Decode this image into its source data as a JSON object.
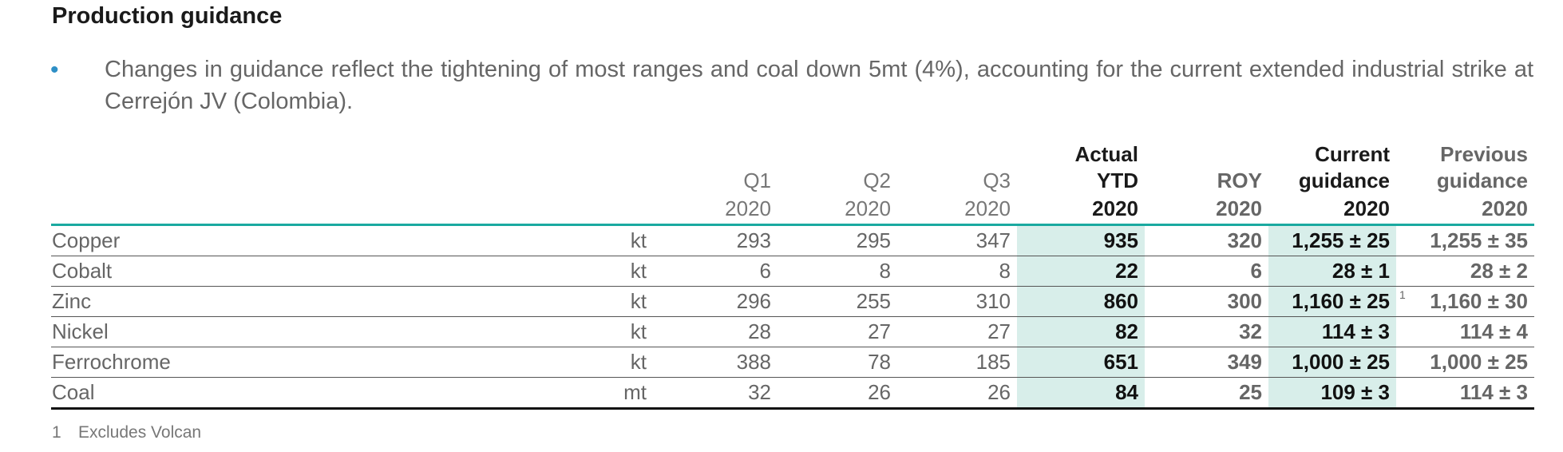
{
  "title": "Production guidance",
  "bullet": "Changes in guidance reflect the tightening of most ranges and coal down 5mt (4%), accounting for the current extended industrial strike at Cerrejón JV (Colombia).",
  "table": {
    "headers": {
      "q1": {
        "line1": "Q1",
        "year": "2020"
      },
      "q2": {
        "line1": "Q2",
        "year": "2020"
      },
      "q3": {
        "line1": "Q3",
        "year": "2020"
      },
      "ytd": {
        "line1": "Actual",
        "line2": "YTD",
        "year": "2020"
      },
      "roy": {
        "line1": "ROY",
        "year": "2020"
      },
      "current": {
        "line1": "Current",
        "line2": "guidance",
        "year": "2020"
      },
      "previous": {
        "line1": "Previous",
        "line2": "guidance",
        "year": "2020"
      }
    },
    "rows": [
      {
        "name": "Copper",
        "unit": "kt",
        "q1": "293",
        "q2": "295",
        "q3": "347",
        "ytd": "935",
        "roy": "320",
        "current": "1,255 ± 25",
        "fn": "",
        "previous": "1,255 ± 35"
      },
      {
        "name": "Cobalt",
        "unit": "kt",
        "q1": "6",
        "q2": "8",
        "q3": "8",
        "ytd": "22",
        "roy": "6",
        "current": "28 ± 1",
        "fn": "",
        "previous": "28 ± 2"
      },
      {
        "name": "Zinc",
        "unit": "kt",
        "q1": "296",
        "q2": "255",
        "q3": "310",
        "ytd": "860",
        "roy": "300",
        "current": "1,160 ± 25",
        "fn": "1",
        "previous": "1,160 ± 30"
      },
      {
        "name": "Nickel",
        "unit": "kt",
        "q1": "28",
        "q2": "27",
        "q3": "27",
        "ytd": "82",
        "roy": "32",
        "current": "114 ± 3",
        "fn": "",
        "previous": "114 ± 4"
      },
      {
        "name": "Ferrochrome",
        "unit": "kt",
        "q1": "388",
        "q2": "78",
        "q3": "185",
        "ytd": "651",
        "roy": "349",
        "current": "1,000 ± 25",
        "fn": "",
        "previous": "1,000 ± 25"
      },
      {
        "name": "Coal",
        "unit": "mt",
        "q1": "32",
        "q2": "26",
        "q3": "26",
        "ytd": "84",
        "roy": "25",
        "current": "109 ± 3",
        "fn": "",
        "previous": "114 ± 3"
      }
    ]
  },
  "footnote": {
    "number": "1",
    "text": "Excludes Volcan"
  },
  "colors": {
    "accent_line": "#1aa9a0",
    "highlight": "#d8eeea",
    "bullet": "#2e8fc6"
  }
}
